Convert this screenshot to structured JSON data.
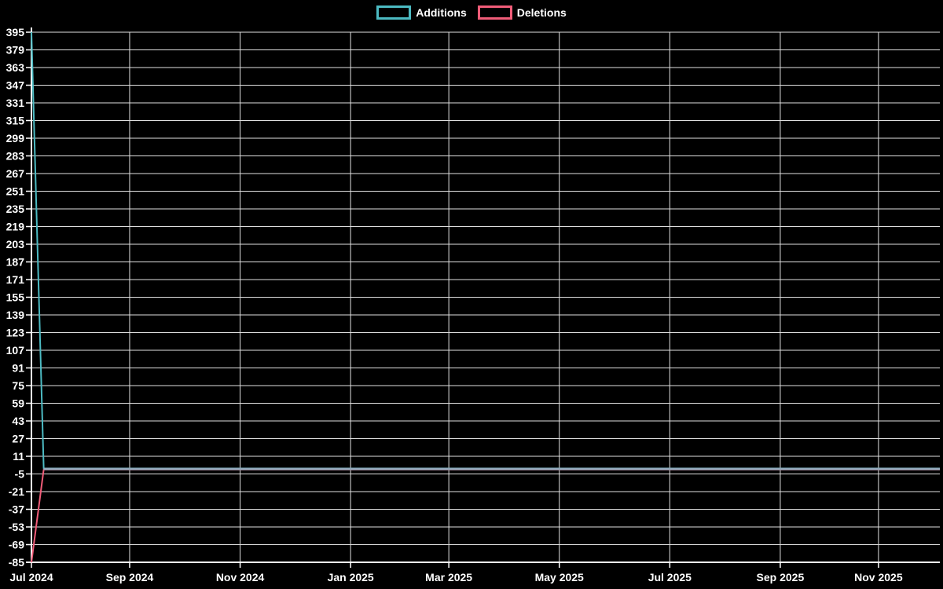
{
  "page": {
    "background": "#000000",
    "text_color": "#ffffff"
  },
  "legend": {
    "position": "top-center",
    "items": [
      {
        "label": "Additions",
        "color": "#4cbac2"
      },
      {
        "label": "Deletions",
        "color": "#f05c78"
      }
    ]
  },
  "chart_data": {
    "type": "line",
    "title": "",
    "xlabel": "",
    "ylabel": "",
    "x_axis": {
      "unit": "week",
      "total_weeks": 74,
      "ticks": [
        {
          "week": 0,
          "label": "Jul 2024"
        },
        {
          "week": 8,
          "label": "Sep 2024"
        },
        {
          "week": 17,
          "label": "Nov 2024"
        },
        {
          "week": 26,
          "label": "Jan 2025"
        },
        {
          "week": 34,
          "label": "Mar 2025"
        },
        {
          "week": 43,
          "label": "May 2025"
        },
        {
          "week": 52,
          "label": "Jul 2025"
        },
        {
          "week": 61,
          "label": "Sep 2025"
        },
        {
          "week": 69,
          "label": "Nov 2025"
        }
      ]
    },
    "y_axis": {
      "min": -85,
      "max": 395,
      "tick_step": 16,
      "tick_values": [
        395,
        379,
        363,
        347,
        331,
        315,
        299,
        283,
        267,
        251,
        235,
        219,
        203,
        187,
        171,
        155,
        139,
        123,
        107,
        91,
        75,
        59,
        43,
        27,
        11,
        -5,
        -21,
        -37,
        -53,
        -69,
        -85
      ]
    },
    "grid": {
      "horizontal": true,
      "vertical": true,
      "color": "#e0e0e0"
    },
    "axis_color": "#ffffff",
    "series": [
      {
        "name": "Additions",
        "color": "#4cbac2",
        "points": [
          [
            0,
            395
          ],
          [
            1,
            0
          ],
          [
            74,
            0
          ]
        ]
      },
      {
        "name": "Deletions",
        "color": "#f05c78",
        "points": [
          [
            0,
            -85
          ],
          [
            1,
            -1
          ],
          [
            74,
            -1
          ]
        ]
      }
    ],
    "overlap_line": {
      "color": "#8fa8ba",
      "from_week": 1,
      "to_week": 74,
      "value": -0.5
    },
    "legend_position": "top-center"
  }
}
